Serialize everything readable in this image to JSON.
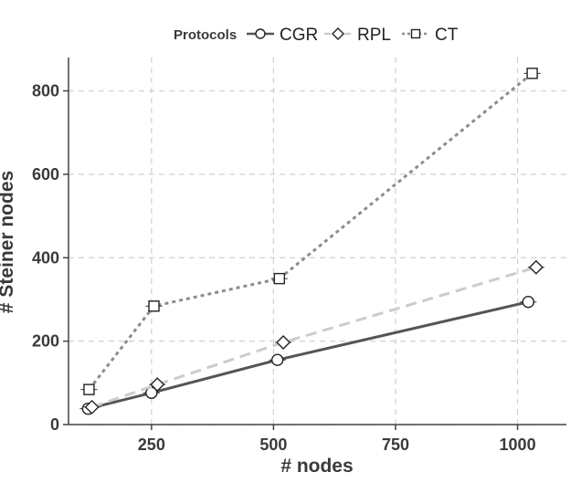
{
  "chart_data": {
    "type": "line",
    "xlabel": "# nodes",
    "ylabel": "# Steiner nodes",
    "xlim": [
      80,
      1100
    ],
    "ylim": [
      0,
      880
    ],
    "x_ticks": [
      250,
      500,
      750,
      1000
    ],
    "y_ticks": [
      0,
      200,
      400,
      600,
      800
    ],
    "grid": true,
    "legend": {
      "title": "Protocols",
      "placement": "top",
      "entries": [
        "CGR",
        "RPL",
        "CT"
      ]
    },
    "series": [
      {
        "name": "CGR",
        "marker": "circle",
        "line_style": "solid",
        "color": "#555555",
        "points": [
          [
            120,
            38
          ],
          [
            250,
            76
          ],
          [
            508,
            155
          ],
          [
            1022,
            294
          ]
        ]
      },
      {
        "name": "RPL",
        "marker": "diamond",
        "line_style": "long-dash",
        "color": "#cccccc",
        "points": [
          [
            128,
            42
          ],
          [
            262,
            96
          ],
          [
            520,
            197
          ],
          [
            1038,
            377
          ]
        ]
      },
      {
        "name": "CT",
        "marker": "square",
        "line_style": "dotted",
        "color": "#8c8c8c",
        "points": [
          [
            122,
            84
          ],
          [
            255,
            284
          ],
          [
            512,
            350
          ],
          [
            1030,
            842
          ]
        ]
      }
    ]
  }
}
